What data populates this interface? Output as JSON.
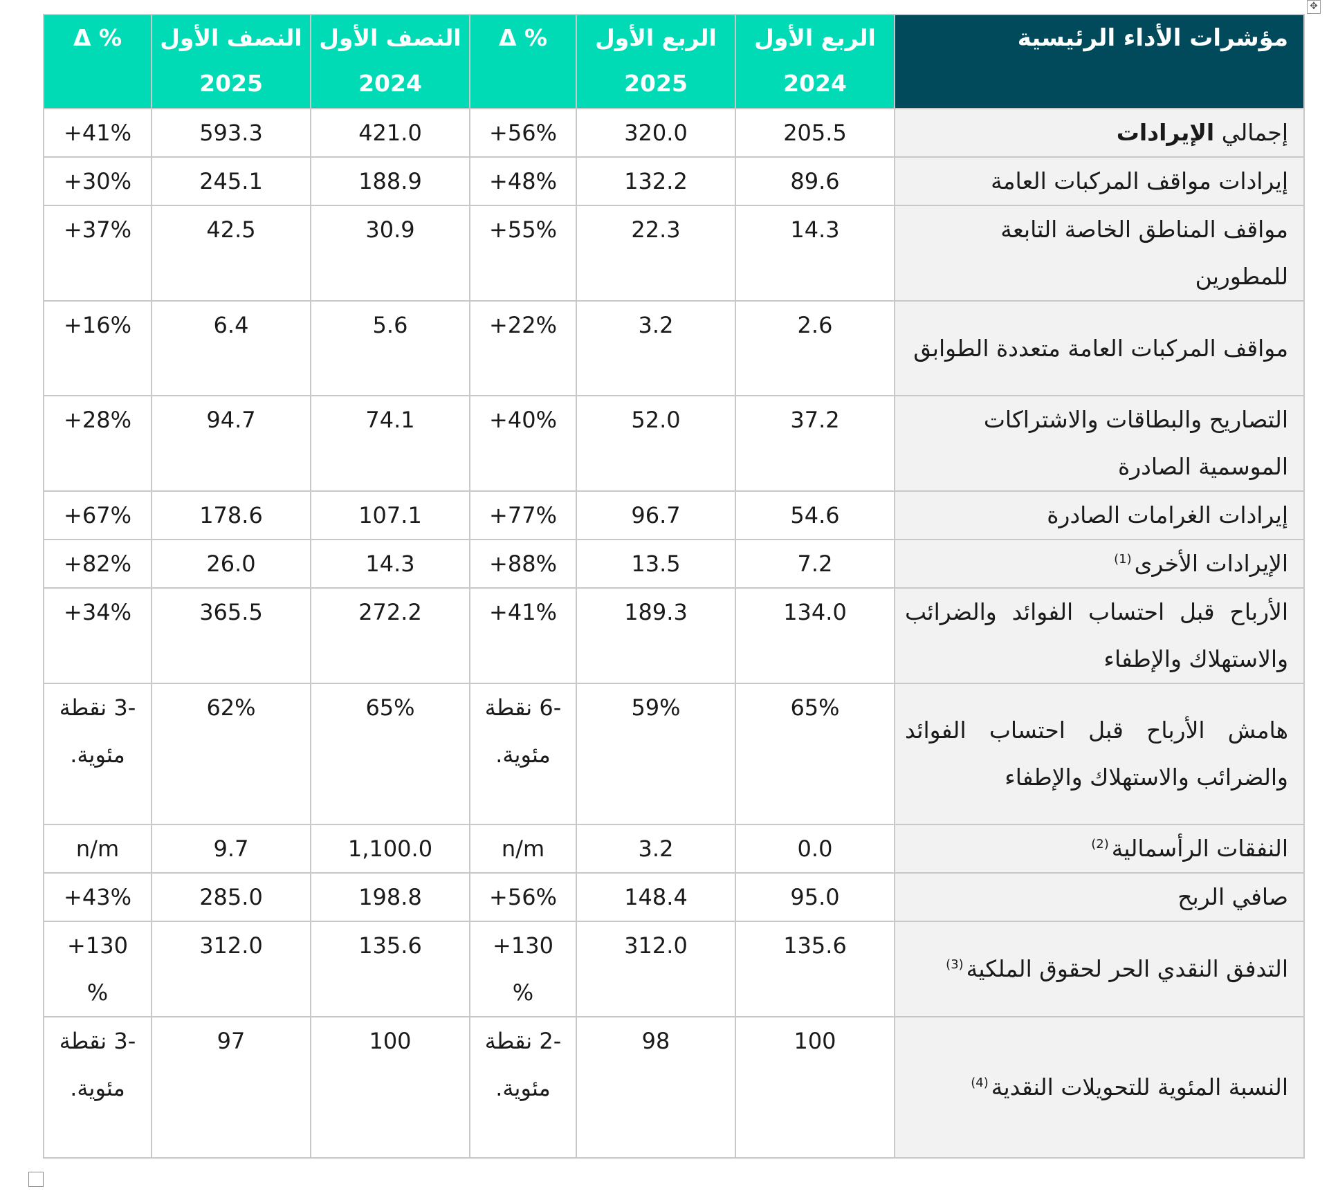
{
  "header": {
    "kpi_label": "مؤشرات الأداء الرئيسية",
    "q1_2024_a": "الربع الأول",
    "q1_2024_b": "2024",
    "q1_2025_a": "الربع الأول",
    "q1_2025_b": "2025",
    "delta_q": "Δ %",
    "h1_2024_a": "النصف الأول",
    "h1_2024_b": "2024",
    "h1_2025_a": "النصف الأول",
    "h1_2025_b": "2025",
    "delta_h": "Δ %"
  },
  "rows": [
    {
      "label": "إجمالي الإيرادات",
      "label_a": "إجمالي ",
      "label_b": "الإيرادات",
      "q1_2024": "205.5",
      "q1_2025": "320.0",
      "dq": "+56%",
      "h1_2024": "421.0",
      "h1_2025": "593.3",
      "dh": "+41%"
    },
    {
      "label": "إيرادات مواقف المركبات العامة",
      "q1_2024": "89.6",
      "q1_2025": "132.2",
      "dq": "+48%",
      "h1_2024": "188.9",
      "h1_2025": "245.1",
      "dh": "+30%"
    },
    {
      "label": "مواقف المناطق الخاصة التابعة للمطورين",
      "q1_2024": "14.3",
      "q1_2025": "22.3",
      "dq": "+55%",
      "h1_2024": "30.9",
      "h1_2025": "42.5",
      "dh": "+37%"
    },
    {
      "label": "مواقف المركبات العامة متعددة الطوابق",
      "q1_2024": "2.6",
      "q1_2025": "3.2",
      "dq": "+22%",
      "h1_2024": "5.6",
      "h1_2025": "6.4",
      "dh": "+16%"
    },
    {
      "label": "التصاريح والبطاقات والاشتراكات الموسمية الصادرة",
      "q1_2024": "37.2",
      "q1_2025": "52.0",
      "dq": "+40%",
      "h1_2024": "74.1",
      "h1_2025": "94.7",
      "dh": "+28%"
    },
    {
      "label": "إيرادات الغرامات الصادرة",
      "q1_2024": "54.6",
      "q1_2025": "96.7",
      "dq": "+77%",
      "h1_2024": "107.1",
      "h1_2025": "178.6",
      "dh": "+67%"
    },
    {
      "label": "الإيرادات الأخرى",
      "fn": "(1)",
      "q1_2024": "7.2",
      "q1_2025": "13.5",
      "dq": "+88%",
      "h1_2024": "14.3",
      "h1_2025": "26.0",
      "dh": "+82%"
    },
    {
      "label": "الأرباح قبل احتساب الفوائد والضرائب والاستهلاك والإطفاء",
      "q1_2024": "134.0",
      "q1_2025": "189.3",
      "dq": "+41%",
      "h1_2024": "272.2",
      "h1_2025": "365.5",
      "dh": "+34%"
    },
    {
      "label": "هامش الأرباح قبل احتساب الفوائد والضرائب والاستهلاك والإطفاء",
      "q1_2024": "65%",
      "q1_2025": "59%",
      "dq": "-6 نقطة مئوية.",
      "h1_2024": "65%",
      "h1_2025": "62%",
      "dh": "-3 نقطة مئوية."
    },
    {
      "label": "النفقات الرأسمالية",
      "fn": "(2)",
      "q1_2024": "0.0",
      "q1_2025": "3.2",
      "dq": "n/m",
      "h1_2024": "1,100.0",
      "h1_2025": "9.7",
      "dh": "n/m"
    },
    {
      "label": "صافي الربح",
      "q1_2024": "95.0",
      "q1_2025": "148.4",
      "dq": "+56%",
      "h1_2024": "198.8",
      "h1_2025": "285.0",
      "dh": "+43%"
    },
    {
      "label": "التدفق النقدي الحر لحقوق الملكية",
      "fn": "(3)",
      "q1_2024": "135.6",
      "q1_2025": "312.0",
      "dq": "+130 %",
      "h1_2024": "135.6",
      "h1_2025": "312.0",
      "dh": "+130 %"
    },
    {
      "label": "النسبة المئوية للتحويلات النقدية",
      "fn": "(4)",
      "q1_2024": "100",
      "q1_2025": "98",
      "dq": "-2 نقطة مئوية.",
      "h1_2024": "100",
      "h1_2025": "97",
      "dh": "-3 نقطة مئوية."
    }
  ],
  "icons": {
    "move_handle": "move-arrows-icon",
    "resize_handle": "table-resize-icon"
  }
}
